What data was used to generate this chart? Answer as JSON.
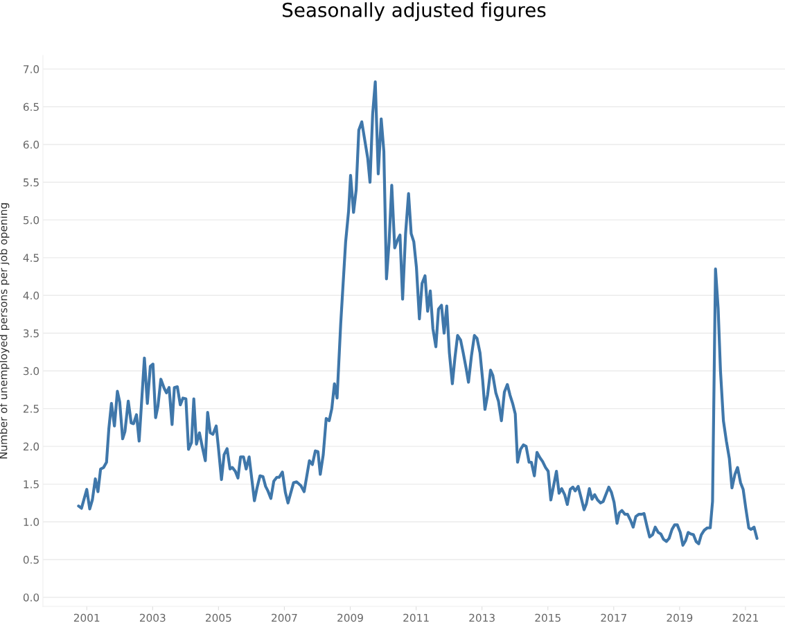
{
  "chart_data": {
    "type": "line",
    "title": "Seasonally adjusted figures",
    "ylabel": "Number of unemployed persons per job opening",
    "xlim": [
      1999.67,
      2022.2
    ],
    "xticks": [
      2001,
      2003,
      2005,
      2007,
      2009,
      2011,
      2013,
      2015,
      2017,
      2019,
      2021
    ],
    "ylim": [
      -0.12,
      7.18
    ],
    "yticks": [
      {
        "value": 0,
        "label": "0.0"
      },
      {
        "value": 0.5,
        "label": "0.5"
      },
      {
        "value": 1,
        "label": "1.0"
      },
      {
        "value": 1.5,
        "label": "1.5"
      },
      {
        "value": 2,
        "label": "2.0"
      },
      {
        "value": 2.5,
        "label": "2.5"
      },
      {
        "value": 3,
        "label": "3.0"
      },
      {
        "value": 3.5,
        "label": "3.5"
      },
      {
        "value": 4,
        "label": "4.0"
      },
      {
        "value": 4.5,
        "label": "4.5"
      },
      {
        "value": 5,
        "label": "5.0"
      },
      {
        "value": 5.5,
        "label": "5.5"
      },
      {
        "value": 6,
        "label": "6.0"
      },
      {
        "value": 6.5,
        "label": "6.5"
      },
      {
        "value": 7,
        "label": "7.0"
      }
    ],
    "grid": "y",
    "marker": "none",
    "line_style": "solid",
    "series": [
      {
        "color": "#3f77aa",
        "x": [
          2000.75,
          2000.84,
          2001.0,
          2001.09,
          2001.17,
          2001.26,
          2001.34,
          2001.42,
          2001.51,
          2001.6,
          2001.67,
          2001.75,
          2001.84,
          2001.93,
          2002.0,
          2002.09,
          2002.16,
          2002.26,
          2002.35,
          2002.42,
          2002.51,
          2002.59,
          2002.75,
          2002.84,
          2002.93,
          2003.01,
          2003.09,
          2003.16,
          2003.25,
          2003.35,
          2003.42,
          2003.5,
          2003.59,
          2003.66,
          2003.75,
          2003.84,
          2003.92,
          2004.01,
          2004.09,
          2004.18,
          2004.25,
          2004.33,
          2004.42,
          2004.51,
          2004.6,
          2004.67,
          2004.75,
          2004.83,
          2004.93,
          2005.0,
          2005.09,
          2005.17,
          2005.26,
          2005.35,
          2005.42,
          2005.51,
          2005.59,
          2005.67,
          2005.76,
          2005.84,
          2005.93,
          2006.09,
          2006.17,
          2006.26,
          2006.35,
          2006.43,
          2006.5,
          2006.59,
          2006.68,
          2006.77,
          2006.84,
          2006.94,
          2007.03,
          2007.11,
          2007.28,
          2007.37,
          2007.5,
          2007.6,
          2007.76,
          2007.85,
          2007.94,
          2008.02,
          2008.09,
          2008.18,
          2008.27,
          2008.36,
          2008.44,
          2008.52,
          2008.6,
          2008.71,
          2008.86,
          2008.95,
          2009.01,
          2009.1,
          2009.18,
          2009.26,
          2009.35,
          2009.44,
          2009.53,
          2009.6,
          2009.68,
          2009.76,
          2009.85,
          2009.94,
          2010.02,
          2010.1,
          2010.18,
          2010.26,
          2010.35,
          2010.44,
          2010.51,
          2010.59,
          2010.68,
          2010.77,
          2010.85,
          2010.93,
          2011.01,
          2011.1,
          2011.18,
          2011.27,
          2011.35,
          2011.43,
          2011.51,
          2011.6,
          2011.68,
          2011.77,
          2011.85,
          2011.93,
          2012.01,
          2012.1,
          2012.18,
          2012.26,
          2012.35,
          2012.43,
          2012.52,
          2012.59,
          2012.68,
          2012.77,
          2012.85,
          2012.94,
          2013.02,
          2013.09,
          2013.17,
          2013.26,
          2013.33,
          2013.42,
          2013.5,
          2013.59,
          2013.68,
          2013.77,
          2013.85,
          2013.93,
          2014.01,
          2014.08,
          2014.17,
          2014.26,
          2014.34,
          2014.43,
          2014.5,
          2014.59,
          2014.67,
          2014.76,
          2014.84,
          2014.93,
          2015.01,
          2015.09,
          2015.26,
          2015.34,
          2015.42,
          2015.51,
          2015.59,
          2015.68,
          2015.76,
          2015.83,
          2015.92,
          2016.01,
          2016.1,
          2016.17,
          2016.26,
          2016.34,
          2016.42,
          2016.51,
          2016.6,
          2016.68,
          2016.76,
          2016.85,
          2016.93,
          2017.01,
          2017.1,
          2017.17,
          2017.25,
          2017.34,
          2017.42,
          2017.51,
          2017.59,
          2017.67,
          2017.76,
          2017.85,
          2017.92,
          2018.01,
          2018.09,
          2018.18,
          2018.26,
          2018.35,
          2018.43,
          2018.51,
          2018.6,
          2018.68,
          2018.77,
          2018.85,
          2018.93,
          2019.02,
          2019.1,
          2019.18,
          2019.26,
          2019.34,
          2019.42,
          2019.5,
          2019.58,
          2019.66,
          2019.75,
          2019.84,
          2019.93,
          2020.0,
          2020.09,
          2020.17,
          2020.24,
          2020.33,
          2020.42,
          2020.51,
          2020.59,
          2020.68,
          2020.76,
          2020.85,
          2020.93,
          2021.01,
          2021.1,
          2021.17,
          2021.26,
          2021.35
        ],
        "values": [
          1.21,
          1.18,
          1.43,
          1.17,
          1.29,
          1.57,
          1.4,
          1.7,
          1.72,
          1.79,
          2.23,
          2.57,
          2.27,
          2.73,
          2.59,
          2.1,
          2.2,
          2.6,
          2.31,
          2.3,
          2.42,
          2.07,
          3.17,
          2.57,
          3.06,
          3.09,
          2.38,
          2.53,
          2.89,
          2.77,
          2.71,
          2.78,
          2.29,
          2.78,
          2.79,
          2.55,
          2.64,
          2.63,
          1.96,
          2.05,
          2.63,
          2.03,
          2.18,
          1.99,
          1.81,
          2.45,
          2.18,
          2.16,
          2.27,
          1.97,
          1.56,
          1.89,
          1.97,
          1.7,
          1.72,
          1.67,
          1.58,
          1.86,
          1.86,
          1.7,
          1.86,
          1.28,
          1.45,
          1.61,
          1.6,
          1.47,
          1.41,
          1.31,
          1.54,
          1.59,
          1.59,
          1.66,
          1.39,
          1.25,
          1.52,
          1.53,
          1.48,
          1.4,
          1.81,
          1.76,
          1.94,
          1.93,
          1.63,
          1.89,
          2.37,
          2.34,
          2.5,
          2.83,
          2.64,
          3.62,
          4.71,
          5.12,
          5.59,
          5.1,
          5.4,
          6.19,
          6.3,
          6.06,
          5.82,
          5.5,
          6.4,
          6.83,
          5.61,
          6.34,
          5.91,
          4.22,
          4.71,
          5.46,
          4.63,
          4.74,
          4.8,
          3.95,
          4.82,
          5.35,
          4.82,
          4.71,
          4.37,
          3.69,
          4.16,
          4.26,
          3.79,
          4.06,
          3.56,
          3.32,
          3.82,
          3.87,
          3.5,
          3.86,
          3.24,
          2.83,
          3.18,
          3.47,
          3.41,
          3.24,
          3.03,
          2.85,
          3.2,
          3.47,
          3.43,
          3.24,
          2.88,
          2.49,
          2.68,
          3.01,
          2.94,
          2.71,
          2.6,
          2.34,
          2.72,
          2.82,
          2.68,
          2.57,
          2.43,
          1.79,
          1.96,
          2.02,
          2.0,
          1.79,
          1.79,
          1.61,
          1.92,
          1.85,
          1.8,
          1.72,
          1.67,
          1.29,
          1.67,
          1.38,
          1.44,
          1.36,
          1.23,
          1.43,
          1.46,
          1.41,
          1.47,
          1.32,
          1.16,
          1.24,
          1.44,
          1.3,
          1.36,
          1.29,
          1.25,
          1.27,
          1.36,
          1.46,
          1.39,
          1.26,
          0.98,
          1.12,
          1.15,
          1.1,
          1.1,
          1.02,
          0.93,
          1.07,
          1.1,
          1.1,
          1.11,
          0.94,
          0.8,
          0.83,
          0.93,
          0.86,
          0.84,
          0.77,
          0.74,
          0.78,
          0.9,
          0.96,
          0.96,
          0.86,
          0.69,
          0.75,
          0.86,
          0.84,
          0.83,
          0.74,
          0.71,
          0.83,
          0.89,
          0.92,
          0.92,
          1.27,
          4.35,
          3.83,
          3.01,
          2.34,
          2.07,
          1.84,
          1.45,
          1.63,
          1.72,
          1.52,
          1.43,
          1.18,
          0.92,
          0.9,
          0.93,
          0.78
        ]
      }
    ]
  }
}
